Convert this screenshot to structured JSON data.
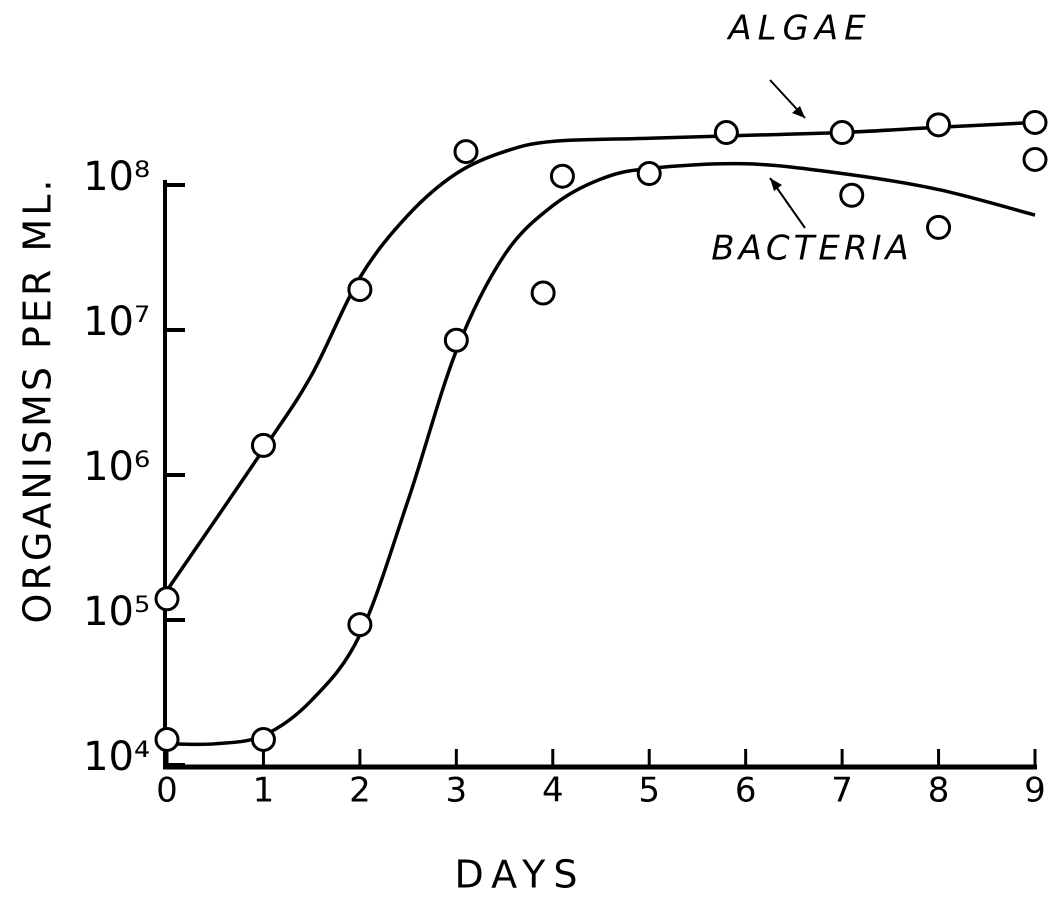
{
  "chart_data": {
    "type": "scatter",
    "x_label": "DAYS",
    "y_label": "ORGANISMS PER ML.",
    "log_y": true,
    "xlim": [
      0,
      9
    ],
    "xticks": [
      0,
      1,
      2,
      3,
      4,
      5,
      6,
      7,
      8,
      9
    ],
    "ylim": [
      10000,
      400000000
    ],
    "yticks": [
      {
        "value": 10000,
        "label": "10⁴"
      },
      {
        "value": 100000,
        "label": "10⁵"
      },
      {
        "value": 1000000,
        "label": "10⁶"
      },
      {
        "value": 10000000,
        "label": "10⁷"
      },
      {
        "value": 100000000,
        "label": "10⁸"
      }
    ],
    "series": [
      {
        "name": "ALGAE",
        "color": "#000000",
        "x": [
          0,
          1,
          2,
          3.1,
          5.8,
          7,
          8,
          9
        ],
        "values": [
          140000,
          1600000,
          19000000,
          170000000,
          230000000,
          230000000,
          260000000,
          270000000
        ],
        "curve_x": [
          0,
          1,
          1.5,
          2,
          2.5,
          3,
          3.5,
          4,
          5,
          6,
          7,
          8,
          9
        ],
        "curve_values": [
          160000,
          1500000,
          4900000,
          23000000,
          62000000,
          120000000,
          170000000,
          200000000,
          210000000,
          220000000,
          230000000,
          250000000,
          270000000
        ]
      },
      {
        "name": "BACTERIA",
        "color": "#000000",
        "x": [
          0,
          1,
          2,
          3,
          3.9,
          4.1,
          5,
          7.1,
          8,
          9
        ],
        "values": [
          15000,
          15000,
          93000,
          8500000,
          18000000,
          115000000,
          120000000,
          85000000,
          51000000,
          150000000
        ],
        "curve_x": [
          0,
          0.5,
          1,
          1.5,
          2,
          2.5,
          3,
          3.5,
          4,
          4.5,
          5,
          6,
          7,
          8,
          9
        ],
        "curve_values": [
          14000,
          14000,
          16000,
          28000,
          79000,
          670000,
          7200000,
          33000000,
          72000000,
          110000000,
          130000000,
          140000000,
          120000000,
          93000000,
          62000000
        ]
      }
    ]
  }
}
